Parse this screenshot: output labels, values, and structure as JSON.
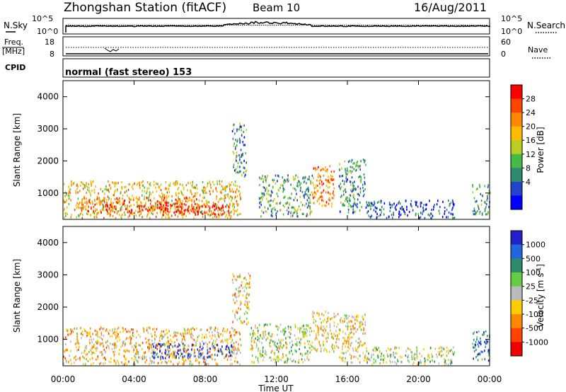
{
  "header": {
    "station": "Zhongshan Station (fitACF)",
    "beam": "Beam 10",
    "date": "16/Aug/2011"
  },
  "noise_panel": {
    "left_label": "N.Sky",
    "left_ticks": [
      "10^5",
      "10^0"
    ],
    "right_label": "N.Search",
    "right_ticks": [
      "10^5",
      "10^0"
    ]
  },
  "freq_panel": {
    "left_label_line1": "Freq.",
    "left_label_line2": "[MHz]",
    "left_ticks": [
      "18",
      "8"
    ],
    "right_label": "Nave",
    "right_ticks": [
      "60",
      "0"
    ]
  },
  "cpid_panel": {
    "label": "CPID",
    "text": "normal (fast stereo) 153"
  },
  "chart_data": [
    {
      "type": "heatmap",
      "variable": "power",
      "ylabel": "Slant Range [km]",
      "ylim": [
        180,
        4500
      ],
      "yticks": [
        "1000",
        "2000",
        "3000",
        "4000"
      ],
      "xlabel": "",
      "xlim_hours": [
        0,
        24
      ],
      "colorbar": {
        "label": "Power [dB]",
        "ticks": [
          "28",
          "24",
          "20",
          "16",
          "12",
          "8",
          "4"
        ],
        "colors": [
          "#ff0000",
          "#ff4400",
          "#ff8800",
          "#ffbb00",
          "#bbcc22",
          "#44bb44",
          "#2e8b6e",
          "#2244cc",
          "#0000ff"
        ],
        "range": [
          0,
          30
        ]
      },
      "regions": [
        {
          "t": [
            0.0,
            10.0
          ],
          "r": [
            250,
            1400
          ],
          "level": 0.6
        },
        {
          "t": [
            1.0,
            7.5
          ],
          "r": [
            400,
            900
          ],
          "level": 0.85
        },
        {
          "t": [
            5.5,
            9.5
          ],
          "r": [
            350,
            700
          ],
          "level": 0.9
        },
        {
          "t": [
            9.5,
            10.3
          ],
          "r": [
            1500,
            3200
          ],
          "level": 0.3
        },
        {
          "t": [
            11.0,
            14.0
          ],
          "r": [
            300,
            1600
          ],
          "level": 0.35
        },
        {
          "t": [
            14.0,
            15.3
          ],
          "r": [
            600,
            1900
          ],
          "level": 0.75
        },
        {
          "t": [
            15.5,
            17.0
          ],
          "r": [
            400,
            2100
          ],
          "level": 0.3
        },
        {
          "t": [
            17.0,
            22.0
          ],
          "r": [
            250,
            800
          ],
          "level": 0.15
        },
        {
          "t": [
            23.0,
            24.0
          ],
          "r": [
            350,
            1300
          ],
          "level": 0.35
        }
      ]
    },
    {
      "type": "heatmap",
      "variable": "velocity",
      "ylabel": "Slant Range [km]",
      "ylim": [
        180,
        4500
      ],
      "yticks": [
        "1000",
        "2000",
        "3000",
        "4000"
      ],
      "xlabel": "Time UT",
      "xticks": [
        "00:00",
        "04:00",
        "08:00",
        "12:00",
        "16:00",
        "20:00",
        "00:00"
      ],
      "xlim_hours": [
        0,
        24
      ],
      "colorbar": {
        "label": "Velocity [m s^-1]",
        "label_main": "Velocity [m s",
        "label_exp": "-1",
        "label_end": "]",
        "ticks": [
          "1000",
          "500",
          "100",
          "25",
          "-25",
          "-100",
          "-500",
          "-1000"
        ],
        "colors": [
          "#2222cc",
          "#2266dd",
          "#2e8b6e",
          "#66cc44",
          "#bbbbbb",
          "#ffcc00",
          "#ff8800",
          "#ff4400",
          "#ee0000"
        ],
        "range": [
          -1100,
          1100
        ]
      },
      "regions": [
        {
          "t": [
            0.0,
            10.0
          ],
          "r": [
            250,
            1400
          ],
          "level": -250
        },
        {
          "t": [
            5.0,
            9.5
          ],
          "r": [
            450,
            900
          ],
          "level": 900
        },
        {
          "t": [
            9.5,
            10.5
          ],
          "r": [
            1500,
            3100
          ],
          "level": -200
        },
        {
          "t": [
            10.5,
            14.0
          ],
          "r": [
            300,
            1500
          ],
          "level": 50
        },
        {
          "t": [
            14.0,
            15.5
          ],
          "r": [
            600,
            1900
          ],
          "level": -200
        },
        {
          "t": [
            15.5,
            17.0
          ],
          "r": [
            300,
            1800
          ],
          "level": -150
        },
        {
          "t": [
            17.0,
            22.0
          ],
          "r": [
            250,
            800
          ],
          "level": 60
        },
        {
          "t": [
            23.0,
            24.0
          ],
          "r": [
            350,
            1300
          ],
          "level": 600
        }
      ]
    }
  ]
}
